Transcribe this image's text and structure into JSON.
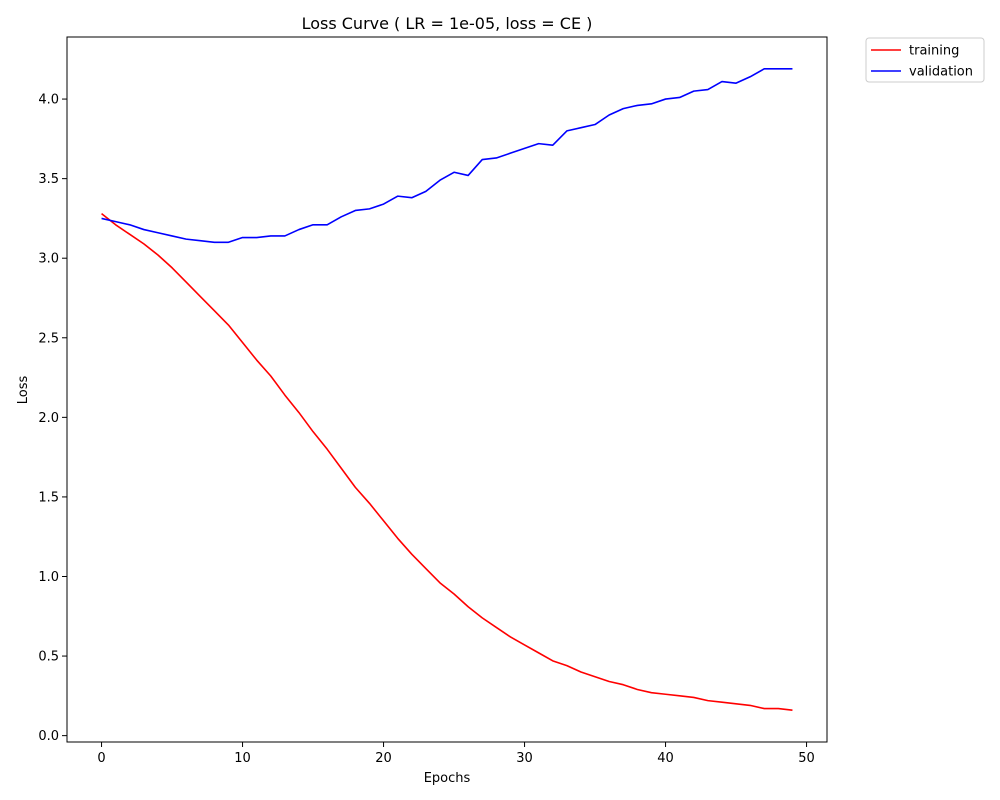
{
  "chart_data": {
    "type": "line",
    "title": "Loss Curve ( LR = 1e-05, loss = CE )",
    "xlabel": "Epochs",
    "ylabel": "Loss",
    "xlim": [
      -2.45,
      51.45
    ],
    "ylim": [
      -0.04,
      4.39
    ],
    "xticks": [
      0,
      10,
      20,
      30,
      40,
      50
    ],
    "yticks": [
      0.0,
      0.5,
      1.0,
      1.5,
      2.0,
      2.5,
      3.0,
      3.5,
      4.0
    ],
    "grid": false,
    "legend_position": "outside-top-right",
    "x": [
      0,
      1,
      2,
      3,
      4,
      5,
      6,
      7,
      8,
      9,
      10,
      11,
      12,
      13,
      14,
      15,
      16,
      17,
      18,
      19,
      20,
      21,
      22,
      23,
      24,
      25,
      26,
      27,
      28,
      29,
      30,
      31,
      32,
      33,
      34,
      35,
      36,
      37,
      38,
      39,
      40,
      41,
      42,
      43,
      44,
      45,
      46,
      47,
      48,
      49
    ],
    "series": [
      {
        "name": "training",
        "color": "#ff0000",
        "values": [
          3.28,
          3.21,
          3.15,
          3.09,
          3.02,
          2.94,
          2.85,
          2.76,
          2.67,
          2.58,
          2.47,
          2.36,
          2.26,
          2.14,
          2.03,
          1.91,
          1.8,
          1.68,
          1.56,
          1.46,
          1.35,
          1.24,
          1.14,
          1.05,
          0.96,
          0.89,
          0.81,
          0.74,
          0.68,
          0.62,
          0.57,
          0.52,
          0.47,
          0.44,
          0.4,
          0.37,
          0.34,
          0.32,
          0.29,
          0.27,
          0.26,
          0.25,
          0.24,
          0.22,
          0.21,
          0.2,
          0.19,
          0.17,
          0.17,
          0.16
        ]
      },
      {
        "name": "validation",
        "color": "#0000ff",
        "values": [
          3.25,
          3.23,
          3.21,
          3.18,
          3.16,
          3.14,
          3.12,
          3.11,
          3.1,
          3.1,
          3.13,
          3.13,
          3.14,
          3.14,
          3.18,
          3.21,
          3.21,
          3.26,
          3.3,
          3.31,
          3.34,
          3.39,
          3.38,
          3.42,
          3.49,
          3.54,
          3.52,
          3.62,
          3.63,
          3.66,
          3.69,
          3.72,
          3.71,
          3.8,
          3.82,
          3.84,
          3.9,
          3.94,
          3.96,
          3.97,
          4.0,
          4.01,
          4.05,
          4.06,
          4.11,
          4.1,
          4.14,
          4.19,
          4.19,
          4.19
        ]
      }
    ]
  }
}
